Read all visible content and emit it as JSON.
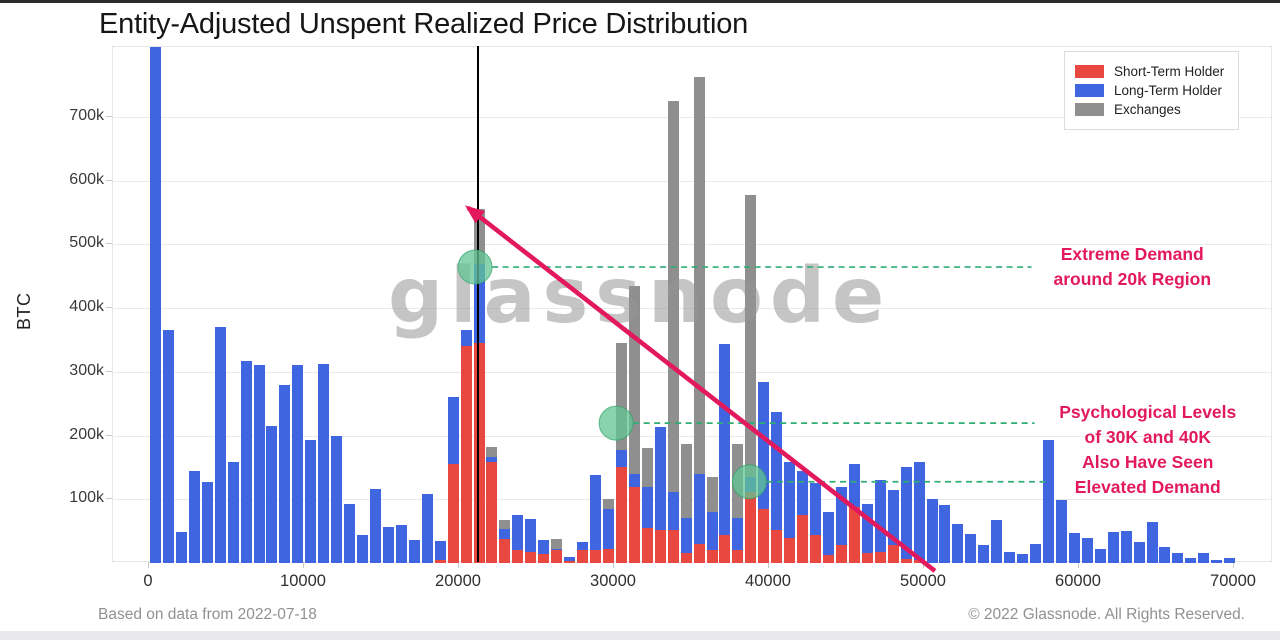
{
  "header": {
    "title": "Entity-Adjusted Unspent Realized Price Distribution"
  },
  "footer": {
    "left": "Based on data from 2022-07-18",
    "right": "© 2022 Glassnode. All Rights Reserved."
  },
  "watermark_text": "glassnode",
  "chart_data": {
    "type": "bar",
    "stacked": true,
    "title": "Entity-Adjusted Unspent Realized Price Distribution",
    "ylabel": "BTC",
    "units": "thousand BTC per price bin (x = BTC price in USD)",
    "legend_position": "top-right",
    "grid": true,
    "series": [
      {
        "name": "Short-Term Holder",
        "color": "#e8483f"
      },
      {
        "name": "Long-Term Holder",
        "color": "#3f66e0"
      },
      {
        "name": "Exchanges",
        "color": "#8f8f8f"
      }
    ],
    "xlim": [
      -2323,
      72516
    ],
    "ylim": [
      0,
      810
    ],
    "yticks": [
      {
        "v": 100,
        "label": "100k"
      },
      {
        "v": 200,
        "label": "200k"
      },
      {
        "v": 300,
        "label": "300k"
      },
      {
        "v": 400,
        "label": "400k"
      },
      {
        "v": 500,
        "label": "500k"
      },
      {
        "v": 600,
        "label": "600k"
      },
      {
        "v": 700,
        "label": "700k"
      }
    ],
    "xticks": [
      {
        "v": 0,
        "label": "0"
      },
      {
        "v": 10000,
        "label": "10000"
      },
      {
        "v": 20000,
        "label": "20000"
      },
      {
        "v": 30000,
        "label": "30000"
      },
      {
        "v": 40000,
        "label": "40000"
      },
      {
        "v": 50000,
        "label": "50000"
      },
      {
        "v": 60000,
        "label": "60000"
      },
      {
        "v": 70000,
        "label": "70000"
      }
    ],
    "bin_width": 835,
    "bars_format": "[short_term_holder_k, long_term_holder_k, exchanges_k] stacked bottom-to-top, bin i spans prices [i*835, (i+1)*835]",
    "bars": [
      [
        0,
        810,
        0
      ],
      [
        0,
        365,
        0
      ],
      [
        0,
        49,
        0
      ],
      [
        0,
        145,
        0
      ],
      [
        0,
        127,
        0
      ],
      [
        0,
        370,
        0
      ],
      [
        0,
        159,
        0
      ],
      [
        0,
        317,
        0
      ],
      [
        0,
        311,
        0
      ],
      [
        0,
        215,
        0
      ],
      [
        0,
        280,
        0
      ],
      [
        0,
        311,
        0
      ],
      [
        0,
        193,
        0
      ],
      [
        0,
        313,
        0
      ],
      [
        0,
        200,
        0
      ],
      [
        0,
        93,
        0
      ],
      [
        0,
        44,
        0
      ],
      [
        0,
        116,
        0
      ],
      [
        0,
        57,
        0
      ],
      [
        0,
        59,
        0
      ],
      [
        0,
        36,
        0
      ],
      [
        0,
        108,
        0
      ],
      [
        5,
        30,
        0
      ],
      [
        155,
        105,
        0
      ],
      [
        340,
        25,
        0
      ],
      [
        345,
        125,
        85
      ],
      [
        159,
        7,
        16
      ],
      [
        38,
        15,
        14
      ],
      [
        20,
        55,
        0
      ],
      [
        17,
        52,
        0
      ],
      [
        14,
        22,
        0
      ],
      [
        20,
        2,
        16
      ],
      [
        3,
        7,
        0
      ],
      [
        20,
        13,
        0
      ],
      [
        20,
        118,
        0
      ],
      [
        22,
        63,
        15
      ],
      [
        150,
        28,
        167
      ],
      [
        120,
        20,
        295
      ],
      [
        55,
        65,
        60
      ],
      [
        52,
        162,
        0
      ],
      [
        52,
        60,
        614
      ],
      [
        15,
        55,
        117
      ],
      [
        30,
        110,
        623
      ],
      [
        20,
        60,
        55
      ],
      [
        44,
        300,
        0
      ],
      [
        20,
        50,
        117
      ],
      [
        112,
        23,
        443
      ],
      [
        85,
        199,
        0
      ],
      [
        52,
        185,
        0
      ],
      [
        40,
        119,
        0
      ],
      [
        75,
        70,
        0
      ],
      [
        44,
        81,
        0
      ],
      [
        12,
        68,
        0
      ],
      [
        28,
        91,
        0
      ],
      [
        88,
        68,
        0
      ],
      [
        15,
        78,
        0
      ],
      [
        17,
        113,
        0
      ],
      [
        28,
        86,
        0
      ],
      [
        6,
        145,
        0
      ],
      [
        4,
        155,
        0
      ],
      [
        0,
        101,
        0
      ],
      [
        0,
        91,
        0
      ],
      [
        0,
        61,
        0
      ],
      [
        0,
        46,
        0
      ],
      [
        0,
        28,
        0
      ],
      [
        0,
        68,
        0
      ],
      [
        0,
        17,
        0
      ],
      [
        0,
        14,
        0
      ],
      [
        0,
        30,
        0
      ],
      [
        0,
        193,
        0
      ],
      [
        0,
        99,
        0
      ],
      [
        0,
        47,
        0
      ],
      [
        0,
        39,
        0
      ],
      [
        0,
        22,
        0
      ],
      [
        0,
        49,
        0
      ],
      [
        0,
        50,
        0
      ],
      [
        0,
        33,
        0
      ],
      [
        0,
        64,
        0
      ],
      [
        0,
        25,
        0
      ],
      [
        0,
        15,
        0
      ],
      [
        0,
        8,
        0
      ],
      [
        0,
        15,
        0
      ],
      [
        0,
        5,
        0
      ],
      [
        0,
        8,
        0
      ]
    ],
    "vertical_line_price": 21300,
    "highlight_circles": [
      {
        "price": 21100,
        "btc_k": 463
      },
      {
        "price": 30200,
        "btc_k": 218
      },
      {
        "price": 38800,
        "btc_k": 126
      }
    ],
    "dashed_lines": [
      {
        "btc_k": 463,
        "from_price": 22200,
        "to_price": 57000
      },
      {
        "btc_k": 218,
        "from_price": 31300,
        "to_price": 57200
      },
      {
        "btc_k": 126,
        "from_price": 39900,
        "to_price": 58200
      }
    ],
    "arrow": {
      "from_price": 50770,
      "from_btc_k": -14,
      "to_price": 20650,
      "to_btc_k": 556
    },
    "annotations": [
      {
        "lines": [
          "Extreme Demand",
          "around 20k Region"
        ],
        "center_price": 63500,
        "center_btc_k": 463
      },
      {
        "lines": [
          "Psychological Levels",
          "of 30K and 40K",
          "Also Have Seen",
          "Elevated Demand"
        ],
        "center_price": 64500,
        "center_btc_k": 176
      }
    ],
    "colors": {
      "annotation_pink": "#e3195e",
      "dashed_green": "#2fae74",
      "circle_green_fill": "rgba(98,197,148,0.75)",
      "circle_green_stroke": "rgba(46,160,100,0.7)",
      "vertical_line": "#000000",
      "watermark_gray": "rgba(150,150,150,0.55)"
    }
  }
}
